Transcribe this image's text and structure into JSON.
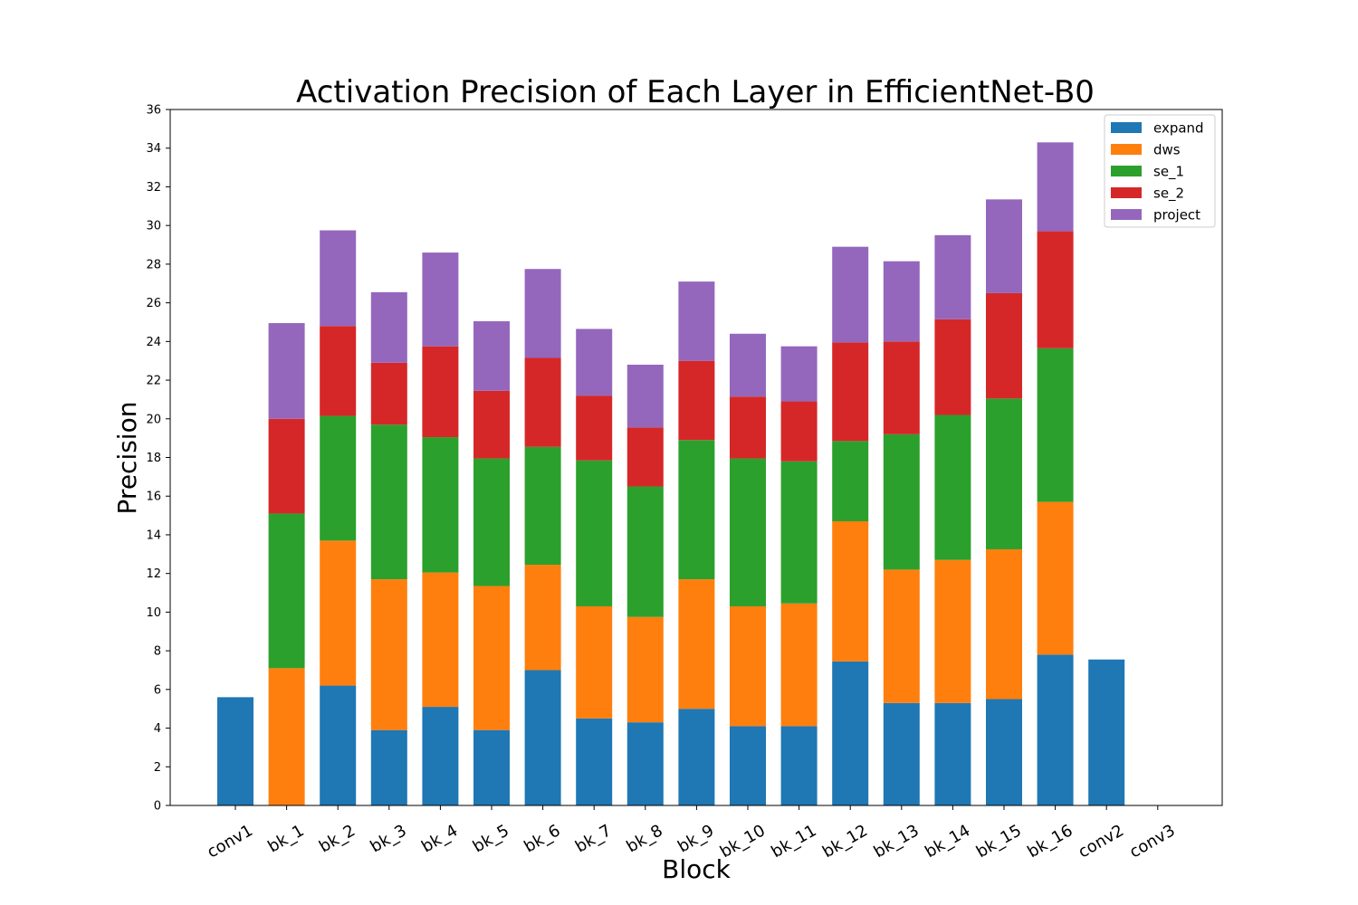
{
  "chart_data": {
    "type": "bar",
    "stacked": true,
    "title": "Activation Precision of Each Layer in EfficientNet-B0",
    "xlabel": "Block",
    "ylabel": "Precision",
    "ylim": [
      0,
      36
    ],
    "yticks": [
      0,
      2,
      4,
      6,
      8,
      10,
      12,
      14,
      16,
      18,
      20,
      22,
      24,
      26,
      28,
      30,
      32,
      34,
      36
    ],
    "grid": false,
    "legend_position": "top-right",
    "categories": [
      "conv1",
      "bk_1",
      "bk_2",
      "bk_3",
      "bk_4",
      "bk_5",
      "bk_6",
      "bk_7",
      "bk_8",
      "bk_9",
      "bk_10",
      "bk_11",
      "bk_12",
      "bk_13",
      "bk_14",
      "bk_15",
      "bk_16",
      "conv2",
      "conv3"
    ],
    "series": [
      {
        "name": "expand",
        "color": "#1f77b4",
        "values": [
          5.6,
          0,
          6.2,
          3.9,
          5.1,
          3.9,
          7.0,
          4.5,
          4.3,
          5.0,
          4.1,
          4.1,
          7.45,
          5.3,
          5.3,
          5.5,
          7.8,
          7.55,
          0
        ]
      },
      {
        "name": "dws",
        "color": "#ff7f0e",
        "values": [
          0,
          7.1,
          7.5,
          7.8,
          6.95,
          7.45,
          5.45,
          5.8,
          5.45,
          6.7,
          6.2,
          6.35,
          7.25,
          6.9,
          7.4,
          7.75,
          7.9,
          0,
          0
        ]
      },
      {
        "name": "se_1",
        "color": "#2ca02c",
        "values": [
          0,
          8.0,
          6.45,
          8.0,
          7.0,
          6.6,
          6.1,
          7.55,
          6.75,
          7.2,
          7.65,
          7.35,
          4.15,
          7.0,
          7.5,
          7.8,
          7.95,
          0,
          0
        ]
      },
      {
        "name": "se_2",
        "color": "#d62728",
        "values": [
          0,
          4.9,
          4.65,
          3.2,
          4.7,
          3.5,
          4.6,
          3.35,
          3.05,
          4.1,
          3.2,
          3.1,
          5.1,
          4.8,
          4.95,
          5.45,
          6.05,
          0,
          0
        ]
      },
      {
        "name": "project",
        "color": "#9467bd",
        "values": [
          0,
          4.95,
          4.95,
          3.65,
          4.85,
          3.6,
          4.6,
          3.45,
          3.25,
          4.1,
          3.25,
          2.85,
          4.95,
          4.15,
          4.35,
          4.85,
          4.6,
          0,
          0
        ]
      }
    ]
  }
}
